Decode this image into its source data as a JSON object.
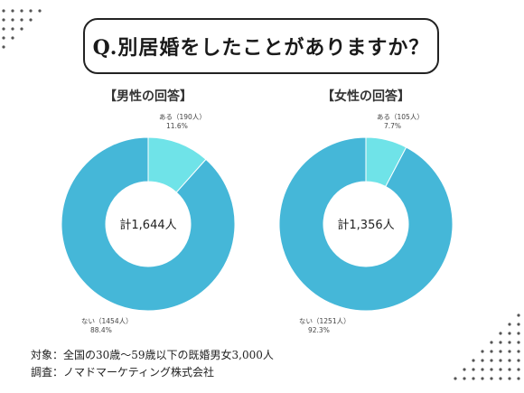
{
  "question": "Q.別居婚をしたことがありますか？",
  "chart_data": [
    {
      "type": "pie",
      "title": "【男性の回答】",
      "center_label": "計1,644人",
      "slices": [
        {
          "label": "ある（190人）",
          "percent_label": "11.6%",
          "value": 11.6,
          "color": "#6fe3e8"
        },
        {
          "label": "ない（1454人）",
          "percent_label": "88.4%",
          "value": 88.4,
          "color": "#45b7d8"
        }
      ]
    },
    {
      "type": "pie",
      "title": "【女性の回答】",
      "center_label": "計1,356人",
      "slices": [
        {
          "label": "ある（105人）",
          "percent_label": "7.7%",
          "value": 7.7,
          "color": "#6fe3e8"
        },
        {
          "label": "ない（1251人）",
          "percent_label": "92.3%",
          "value": 92.3,
          "color": "#45b7d8"
        }
      ]
    }
  ],
  "footer": {
    "target": "対象：全国の30歳～59歳以下の既婚男女3,000人",
    "survey": "調査：ノマドマーケティング株式会社"
  }
}
